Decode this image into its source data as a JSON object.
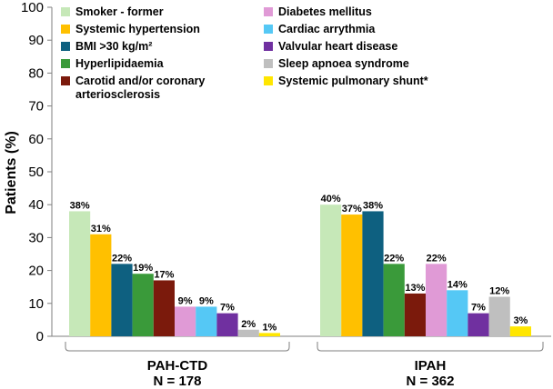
{
  "chart_data": {
    "type": "bar",
    "ylabel": "Patients (%)",
    "ylim": [
      0,
      100
    ],
    "yticks": [
      "0",
      "10",
      "20",
      "30",
      "40",
      "50",
      "60",
      "70",
      "80",
      "90",
      "100"
    ],
    "legend_position": "top",
    "groups": [
      {
        "name": "PAH-CTD",
        "n_label": "N = 178"
      },
      {
        "name": "IPAH",
        "n_label": "N = 362"
      }
    ],
    "series": [
      {
        "name": "Smoker - former",
        "color": "#c6e8b8",
        "values": [
          38,
          40
        ],
        "labels": [
          "38%",
          "40%"
        ]
      },
      {
        "name": "Systemic hypertension",
        "color": "#ffc000",
        "values": [
          31,
          37
        ],
        "labels": [
          "31%",
          "37%"
        ]
      },
      {
        "name": "BMI >30 kg/m²",
        "color": "#0e6080",
        "values": [
          22,
          38
        ],
        "labels": [
          "22%",
          "38%"
        ]
      },
      {
        "name": "Hyperlipidaemia",
        "color": "#3a9a3a",
        "values": [
          19,
          22
        ],
        "labels": [
          "19%",
          "22%"
        ]
      },
      {
        "name": "Carotid and/or coronary arteriosclerosis",
        "legend_lines": [
          "Carotid and/or coronary",
          "arteriosclerosis"
        ],
        "color": "#7b1a0c",
        "values": [
          17,
          13
        ],
        "labels": [
          "17%",
          "13%"
        ]
      },
      {
        "name": "Diabetes mellitus",
        "color": "#e09ad6",
        "values": [
          9,
          22
        ],
        "labels": [
          "9%",
          "22%"
        ]
      },
      {
        "name": "Cardiac arrythmia",
        "color": "#55c8f5",
        "values": [
          9,
          14
        ],
        "labels": [
          "9%",
          "14%"
        ]
      },
      {
        "name": "Valvular heart disease",
        "color": "#7030a0",
        "values": [
          7,
          7
        ],
        "labels": [
          "7%",
          "7%"
        ]
      },
      {
        "name": "Sleep apnoea syndrome",
        "color": "#bfbfbf",
        "values": [
          2,
          12
        ],
        "labels": [
          "2%",
          "12%"
        ]
      },
      {
        "name": "Systemic pulmonary shunt*",
        "color": "#ffe600",
        "values": [
          1,
          3
        ],
        "labels": [
          "1%",
          "3%"
        ]
      }
    ]
  }
}
